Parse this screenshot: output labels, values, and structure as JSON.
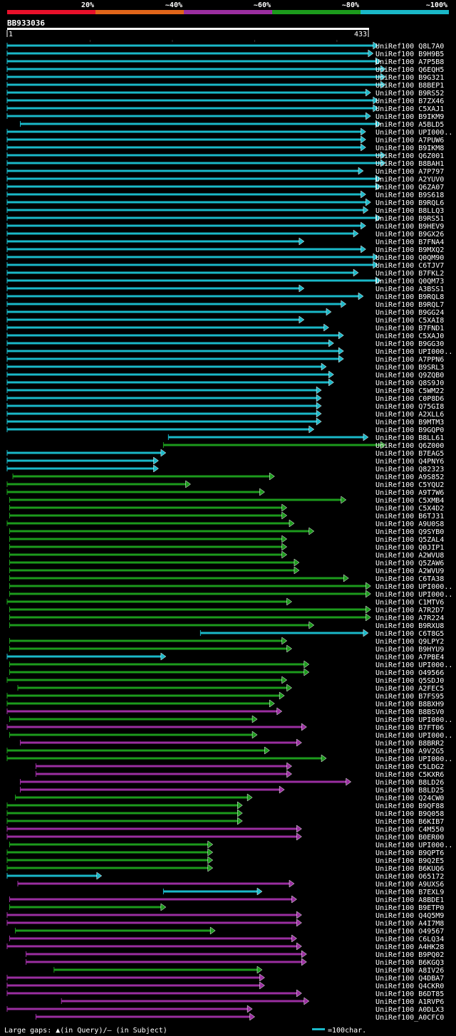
{
  "query_id": "BB933036",
  "scale": {
    "start": "1",
    "end": "433"
  },
  "identity_legend": [
    {
      "label": "20%",
      "color": "#e8102a"
    },
    {
      "label": "~40%",
      "color": "#e0651a"
    },
    {
      "label": "~60%",
      "color": "#9a2ea0"
    },
    {
      "label": "~80%",
      "color": "#1c9a1c"
    },
    {
      "label": "~100%",
      "color": "#1ab8c8"
    }
  ],
  "footer": {
    "gaps_text": "Large gaps: ▲(in Query)/– (in Subject)",
    "scale_text": "=100char."
  },
  "chart_data": {
    "type": "alignment",
    "query_length": 433,
    "scale_unit": 100,
    "hits": [
      {
        "name": "UniRef100_Q8L7A0",
        "start": 1,
        "end": 452,
        "color": "#1ab8c8"
      },
      {
        "name": "UniRef100_B9H9B5",
        "start": 1,
        "end": 446,
        "color": "#1ab8c8"
      },
      {
        "name": "UniRef100_A7P5B8",
        "start": 1,
        "end": 455,
        "color": "#1ab8c8"
      },
      {
        "name": "UniRef100_Q6EQH5",
        "start": 1,
        "end": 461,
        "color": "#1ab8c8"
      },
      {
        "name": "UniRef100_B9G321",
        "start": 1,
        "end": 461,
        "color": "#1ab8c8"
      },
      {
        "name": "UniRef100_B8BEP1",
        "start": 1,
        "end": 461,
        "color": "#1ab8c8"
      },
      {
        "name": "UniRef100_B9RS52",
        "start": 1,
        "end": 443,
        "color": "#1ab8c8"
      },
      {
        "name": "UniRef100_B7ZX46",
        "start": 1,
        "end": 452,
        "color": "#1ab8c8"
      },
      {
        "name": "UniRef100_C5XAJ1",
        "start": 1,
        "end": 452,
        "color": "#1ab8c8"
      },
      {
        "name": "UniRef100_B9IKM9",
        "start": 1,
        "end": 443,
        "color": "#1ab8c8"
      },
      {
        "name": "UniRef100_A5BLD5",
        "start": 17,
        "end": 455,
        "color": "#1ab8c8"
      },
      {
        "name": "UniRef100_UPI000..",
        "start": 1,
        "end": 437,
        "color": "#1ab8c8"
      },
      {
        "name": "UniRef100_A7PUW6",
        "start": 1,
        "end": 437,
        "color": "#1ab8c8"
      },
      {
        "name": "UniRef100_B9IKM8",
        "start": 1,
        "end": 437,
        "color": "#1ab8c8"
      },
      {
        "name": "UniRef100_Q6Z001",
        "start": 1,
        "end": 461,
        "color": "#1ab8c8"
      },
      {
        "name": "UniRef100_B8BAH1",
        "start": 1,
        "end": 461,
        "color": "#1ab8c8"
      },
      {
        "name": "UniRef100_A7P797",
        "start": 1,
        "end": 434,
        "color": "#1ab8c8"
      },
      {
        "name": "UniRef100_A2YUV0",
        "start": 1,
        "end": 455,
        "color": "#1ab8c8"
      },
      {
        "name": "UniRef100_Q6ZA07",
        "start": 1,
        "end": 455,
        "color": "#1ab8c8"
      },
      {
        "name": "UniRef100_B9S618",
        "start": 1,
        "end": 437,
        "color": "#1ab8c8"
      },
      {
        "name": "UniRef100_B9RQL6",
        "start": 1,
        "end": 443,
        "color": "#1ab8c8"
      },
      {
        "name": "UniRef100_B8LLQ3",
        "start": 1,
        "end": 440,
        "color": "#1ab8c8"
      },
      {
        "name": "UniRef100_B9RS51",
        "start": 1,
        "end": 455,
        "color": "#1ab8c8"
      },
      {
        "name": "UniRef100_B9HEV9",
        "start": 1,
        "end": 437,
        "color": "#1ab8c8"
      },
      {
        "name": "UniRef100_B9GX26",
        "start": 1,
        "end": 428,
        "color": "#1ab8c8"
      },
      {
        "name": "UniRef100_B7FNA4",
        "start": 1,
        "end": 362,
        "color": "#1ab8c8"
      },
      {
        "name": "UniRef100_B9MXQ2",
        "start": 1,
        "end": 437,
        "color": "#1ab8c8"
      },
      {
        "name": "UniRef100_Q0QM90",
        "start": 1,
        "end": 452,
        "color": "#1ab8c8"
      },
      {
        "name": "UniRef100_C6TJV7",
        "start": 1,
        "end": 452,
        "color": "#1ab8c8"
      },
      {
        "name": "UniRef100_B7FKL2",
        "start": 1,
        "end": 428,
        "color": "#1ab8c8"
      },
      {
        "name": "UniRef100_Q0QM73",
        "start": 1,
        "end": 455,
        "color": "#1ab8c8"
      },
      {
        "name": "UniRef100_A3BSS1",
        "start": 1,
        "end": 362,
        "color": "#1ab8c8"
      },
      {
        "name": "UniRef100_B9RQL8",
        "start": 1,
        "end": 434,
        "color": "#1ab8c8"
      },
      {
        "name": "UniRef100_B9RQL7",
        "start": 1,
        "end": 413,
        "color": "#1ab8c8"
      },
      {
        "name": "UniRef100_B9GG24",
        "start": 1,
        "end": 395,
        "color": "#1ab8c8"
      },
      {
        "name": "UniRef100_C5XAI8",
        "start": 1,
        "end": 362,
        "color": "#1ab8c8"
      },
      {
        "name": "UniRef100_B7FND1",
        "start": 1,
        "end": 392,
        "color": "#1ab8c8"
      },
      {
        "name": "UniRef100_C5XAJ0",
        "start": 1,
        "end": 410,
        "color": "#1ab8c8"
      },
      {
        "name": "UniRef100_B9GG30",
        "start": 1,
        "end": 398,
        "color": "#1ab8c8"
      },
      {
        "name": "UniRef100_UPI000..",
        "start": 1,
        "end": 410,
        "color": "#1ab8c8"
      },
      {
        "name": "UniRef100_A7PPN6",
        "start": 1,
        "end": 410,
        "color": "#1ab8c8"
      },
      {
        "name": "UniRef100_B9SRL3",
        "start": 1,
        "end": 389,
        "color": "#1ab8c8"
      },
      {
        "name": "UniRef100_Q9ZQB0",
        "start": 1,
        "end": 398,
        "color": "#1ab8c8"
      },
      {
        "name": "UniRef100_Q8S9J0",
        "start": 1,
        "end": 398,
        "color": "#1ab8c8"
      },
      {
        "name": "UniRef100_C5WM22",
        "start": 1,
        "end": 383,
        "color": "#1ab8c8"
      },
      {
        "name": "UniRef100_C0P8D6",
        "start": 1,
        "end": 383,
        "color": "#1ab8c8"
      },
      {
        "name": "UniRef100_Q75GI8",
        "start": 1,
        "end": 383,
        "color": "#1ab8c8"
      },
      {
        "name": "UniRef100_A2XLL6",
        "start": 1,
        "end": 383,
        "color": "#1ab8c8"
      },
      {
        "name": "UniRef100_B9MTM3",
        "start": 1,
        "end": 383,
        "color": "#1ab8c8"
      },
      {
        "name": "UniRef100_B9GQP0",
        "start": 1,
        "end": 374,
        "color": "#1ab8c8"
      },
      {
        "name": "UniRef100_B8LL61",
        "start": 197,
        "end": 440,
        "color": "#1ab8c8"
      },
      {
        "name": "UniRef100_Q6Z000",
        "start": 191,
        "end": 461,
        "color": "#1c9a1c"
      },
      {
        "name": "UniRef100_B7EAG5",
        "start": 1,
        "end": 194,
        "color": "#1ab8c8"
      },
      {
        "name": "UniRef100_Q4PNY6",
        "start": 1,
        "end": 185,
        "color": "#1ab8c8"
      },
      {
        "name": "UniRef100_Q82323",
        "start": 1,
        "end": 185,
        "color": "#1ab8c8"
      },
      {
        "name": "UniRef100_A9S852",
        "start": 8,
        "end": 326,
        "color": "#1c9a1c"
      },
      {
        "name": "UniRef100_C5YQU2",
        "start": 1,
        "end": 224,
        "color": "#1c9a1c"
      },
      {
        "name": "UniRef100_A9T7W6",
        "start": 1,
        "end": 314,
        "color": "#1c9a1c"
      },
      {
        "name": "UniRef100_C5XMB4",
        "start": 4,
        "end": 413,
        "color": "#1c9a1c"
      },
      {
        "name": "UniRef100_C5X4D2",
        "start": 4,
        "end": 341,
        "color": "#1c9a1c"
      },
      {
        "name": "UniRef100_B6TJ31",
        "start": 4,
        "end": 341,
        "color": "#1c9a1c"
      },
      {
        "name": "UniRef100_A9U0S8",
        "start": 1,
        "end": 350,
        "color": "#1c9a1c"
      },
      {
        "name": "UniRef100_Q9SYB0",
        "start": 4,
        "end": 374,
        "color": "#1c9a1c"
      },
      {
        "name": "UniRef100_Q5ZAL4",
        "start": 4,
        "end": 341,
        "color": "#1c9a1c"
      },
      {
        "name": "UniRef100_Q0JIP1",
        "start": 4,
        "end": 341,
        "color": "#1c9a1c"
      },
      {
        "name": "UniRef100_A2WVU8",
        "start": 4,
        "end": 341,
        "color": "#1c9a1c"
      },
      {
        "name": "UniRef100_Q5ZAW6",
        "start": 4,
        "end": 356,
        "color": "#1c9a1c"
      },
      {
        "name": "UniRef100_A2WVU9",
        "start": 4,
        "end": 356,
        "color": "#1c9a1c"
      },
      {
        "name": "UniRef100_C6TA38",
        "start": 4,
        "end": 416,
        "color": "#1c9a1c"
      },
      {
        "name": "UniRef100_UPI000..",
        "start": 4,
        "end": 443,
        "color": "#1c9a1c"
      },
      {
        "name": "UniRef100_UPI000..",
        "start": 4,
        "end": 443,
        "color": "#1c9a1c"
      },
      {
        "name": "UniRef100_C1MTV6",
        "start": 1,
        "end": 347,
        "color": "#1c9a1c"
      },
      {
        "name": "UniRef100_A7R2D7",
        "start": 4,
        "end": 443,
        "color": "#1c9a1c"
      },
      {
        "name": "UniRef100_A7R224",
        "start": 4,
        "end": 443,
        "color": "#1c9a1c"
      },
      {
        "name": "UniRef100_B9RXU8",
        "start": 4,
        "end": 374,
        "color": "#1c9a1c"
      },
      {
        "name": "UniRef100_C6T8G5",
        "start": 236,
        "end": 440,
        "color": "#1ab8c8"
      },
      {
        "name": "UniRef100_Q9LPY2",
        "start": 4,
        "end": 341,
        "color": "#1c9a1c"
      },
      {
        "name": "UniRef100_B9HYU9",
        "start": 4,
        "end": 347,
        "color": "#1c9a1c"
      },
      {
        "name": "UniRef100_A7PBE4",
        "start": 1,
        "end": 194,
        "color": "#1ab8c8"
      },
      {
        "name": "UniRef100_UPI000..",
        "start": 4,
        "end": 368,
        "color": "#1c9a1c"
      },
      {
        "name": "UniRef100_O49566",
        "start": 4,
        "end": 368,
        "color": "#1c9a1c"
      },
      {
        "name": "UniRef100_Q5SDJ0",
        "start": 1,
        "end": 341,
        "color": "#1c9a1c"
      },
      {
        "name": "UniRef100_A2FEC5",
        "start": 14,
        "end": 347,
        "color": "#1c9a1c"
      },
      {
        "name": "UniRef100_B7FS95",
        "start": 1,
        "end": 338,
        "color": "#1c9a1c"
      },
      {
        "name": "UniRef100_B8BXH9",
        "start": 1,
        "end": 326,
        "color": "#1c9a1c"
      },
      {
        "name": "UniRef100_B8BSV0",
        "start": 1,
        "end": 335,
        "color": "#9a2ea0"
      },
      {
        "name": "UniRef100_UPI000..",
        "start": 4,
        "end": 305,
        "color": "#1c9a1c"
      },
      {
        "name": "UniRef100_B7FT06",
        "start": 1,
        "end": 365,
        "color": "#9a2ea0"
      },
      {
        "name": "UniRef100_UPI000..",
        "start": 4,
        "end": 305,
        "color": "#1c9a1c"
      },
      {
        "name": "UniRef100_B8BRR2",
        "start": 17,
        "end": 359,
        "color": "#9a2ea0"
      },
      {
        "name": "UniRef100_A9V2G5",
        "start": 1,
        "end": 320,
        "color": "#1c9a1c"
      },
      {
        "name": "UniRef100_UPI000..",
        "start": 1,
        "end": 389,
        "color": "#1c9a1c"
      },
      {
        "name": "UniRef100_C5LDG2",
        "start": 36,
        "end": 347,
        "color": "#9a2ea0"
      },
      {
        "name": "UniRef100_C5KXR6",
        "start": 36,
        "end": 347,
        "color": "#9a2ea0"
      },
      {
        "name": "UniRef100_B8LD26",
        "start": 17,
        "end": 419,
        "color": "#9a2ea0"
      },
      {
        "name": "UniRef100_B8LD25",
        "start": 17,
        "end": 338,
        "color": "#9a2ea0"
      },
      {
        "name": "UniRef100_Q24CW0",
        "start": 11,
        "end": 299,
        "color": "#1c9a1c"
      },
      {
        "name": "UniRef100_B9QF88",
        "start": 1,
        "end": 287,
        "color": "#1c9a1c"
      },
      {
        "name": "UniRef100_B9Q058",
        "start": 1,
        "end": 287,
        "color": "#1c9a1c"
      },
      {
        "name": "UniRef100_B6KIB7",
        "start": 1,
        "end": 287,
        "color": "#1c9a1c"
      },
      {
        "name": "UniRef100_C4M550",
        "start": 1,
        "end": 359,
        "color": "#9a2ea0"
      },
      {
        "name": "UniRef100_B0ER00",
        "start": 1,
        "end": 359,
        "color": "#9a2ea0"
      },
      {
        "name": "UniRef100_UPI000..",
        "start": 4,
        "end": 251,
        "color": "#1c9a1c"
      },
      {
        "name": "UniRef100_B9QPT6",
        "start": 1,
        "end": 251,
        "color": "#1c9a1c"
      },
      {
        "name": "UniRef100_B9Q2E5",
        "start": 1,
        "end": 251,
        "color": "#1c9a1c"
      },
      {
        "name": "UniRef100_B6KUQ6",
        "start": 1,
        "end": 251,
        "color": "#1c9a1c"
      },
      {
        "name": "UniRef100_O65172",
        "start": 1,
        "end": 116,
        "color": "#1ab8c8"
      },
      {
        "name": "UniRef100_A9UXS6",
        "start": 14,
        "end": 350,
        "color": "#9a2ea0"
      },
      {
        "name": "UniRef100_B7EXL9",
        "start": 191,
        "end": 311,
        "color": "#1ab8c8"
      },
      {
        "name": "UniRef100_A8BDE1",
        "start": 4,
        "end": 353,
        "color": "#9a2ea0"
      },
      {
        "name": "UniRef100_B9ETP0",
        "start": 4,
        "end": 194,
        "color": "#1c9a1c"
      },
      {
        "name": "UniRef100_Q4Q5M9",
        "start": 1,
        "end": 359,
        "color": "#9a2ea0"
      },
      {
        "name": "UniRef100_A4I7M8",
        "start": 1,
        "end": 359,
        "color": "#9a2ea0"
      },
      {
        "name": "UniRef100_O49567",
        "start": 11,
        "end": 254,
        "color": "#1c9a1c"
      },
      {
        "name": "UniRef100_C6LQ34",
        "start": 4,
        "end": 353,
        "color": "#9a2ea0"
      },
      {
        "name": "UniRef100_A4HK28",
        "start": 1,
        "end": 359,
        "color": "#9a2ea0"
      },
      {
        "name": "UniRef100_B9PQ02",
        "start": 24,
        "end": 365,
        "color": "#9a2ea0"
      },
      {
        "name": "UniRef100_B6KGQ3",
        "start": 24,
        "end": 365,
        "color": "#9a2ea0"
      },
      {
        "name": "UniRef100_A8IV26",
        "start": 58,
        "end": 311,
        "color": "#1c9a1c"
      },
      {
        "name": "UniRef100_Q4DBA7",
        "start": 1,
        "end": 314,
        "color": "#9a2ea0"
      },
      {
        "name": "UniRef100_Q4CKR0",
        "start": 1,
        "end": 314,
        "color": "#9a2ea0"
      },
      {
        "name": "UniRef100_B6DT85",
        "start": 1,
        "end": 359,
        "color": "#9a2ea0"
      },
      {
        "name": "UniRef100_A1RVP6",
        "start": 67,
        "end": 368,
        "color": "#9a2ea0"
      },
      {
        "name": "UniRef100_A0DLX3",
        "start": 1,
        "end": 299,
        "color": "#9a2ea0"
      },
      {
        "name": "UniRef100_A0CFC0",
        "start": 36,
        "end": 302,
        "color": "#9a2ea0"
      }
    ]
  }
}
